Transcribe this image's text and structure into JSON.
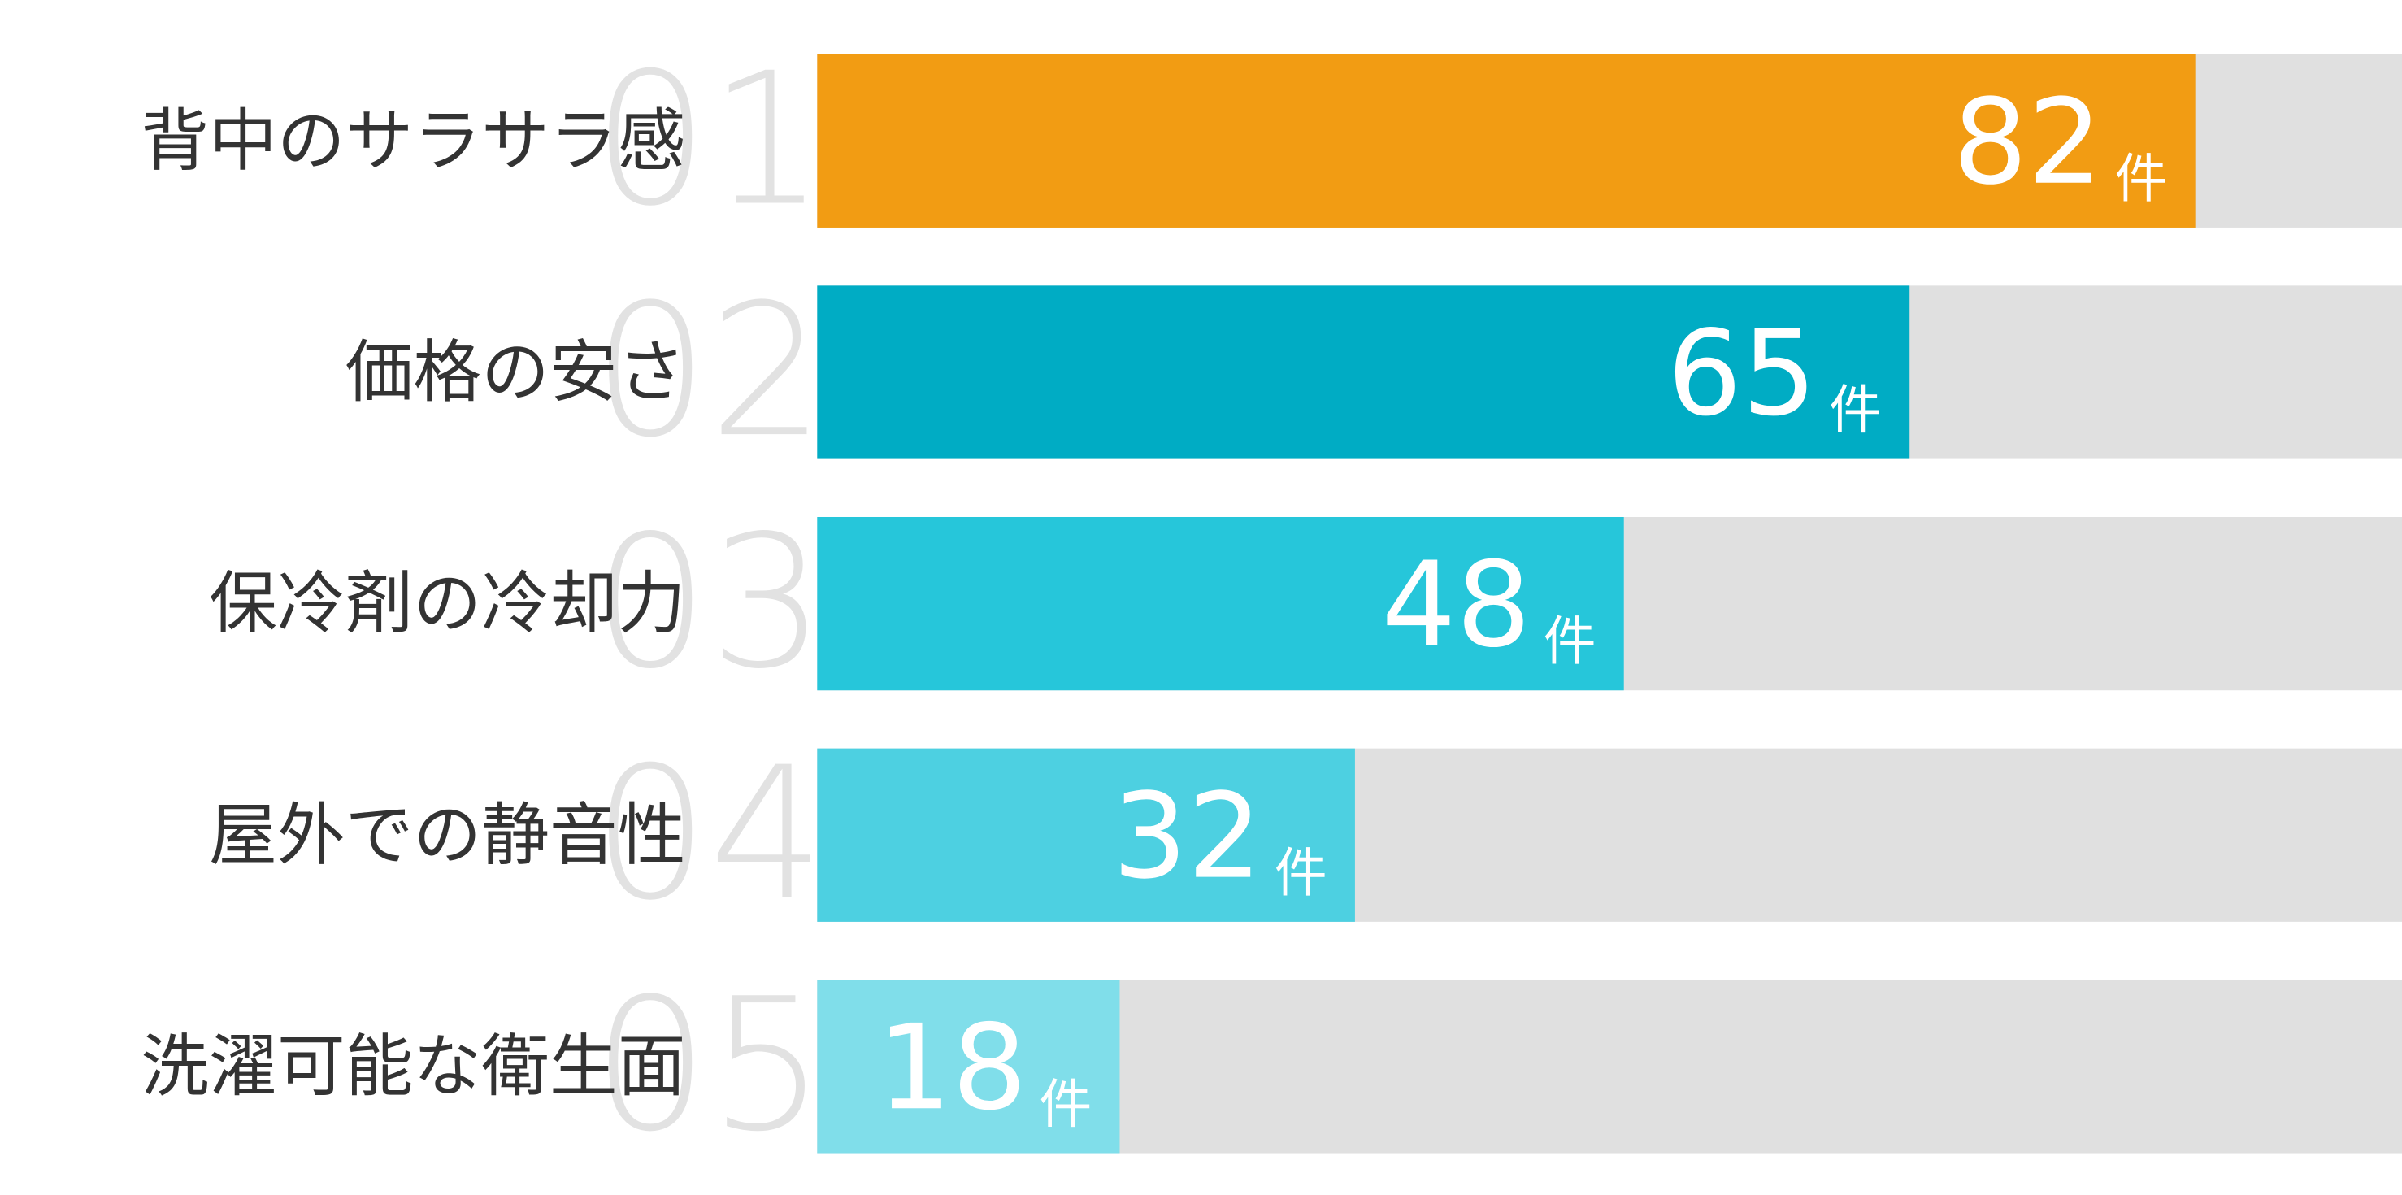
{
  "chart_data": {
    "type": "bar",
    "orientation": "horizontal",
    "categories": [
      "背中のサラサラ感",
      "価格の安さ",
      "保冷剤の冷却力",
      "屋外での静音性",
      "洗濯可能な衛生面"
    ],
    "ranks": [
      "01",
      "02",
      "03",
      "04",
      "05"
    ],
    "values": [
      82,
      65,
      48,
      32,
      18
    ],
    "unit": "件",
    "colors": [
      "#f29c13",
      "#00acc4",
      "#26c6da",
      "#4dd0e1",
      "#80deea"
    ],
    "track_color": "#e0e0e0",
    "xlim": [
      0,
      94.3
    ]
  }
}
